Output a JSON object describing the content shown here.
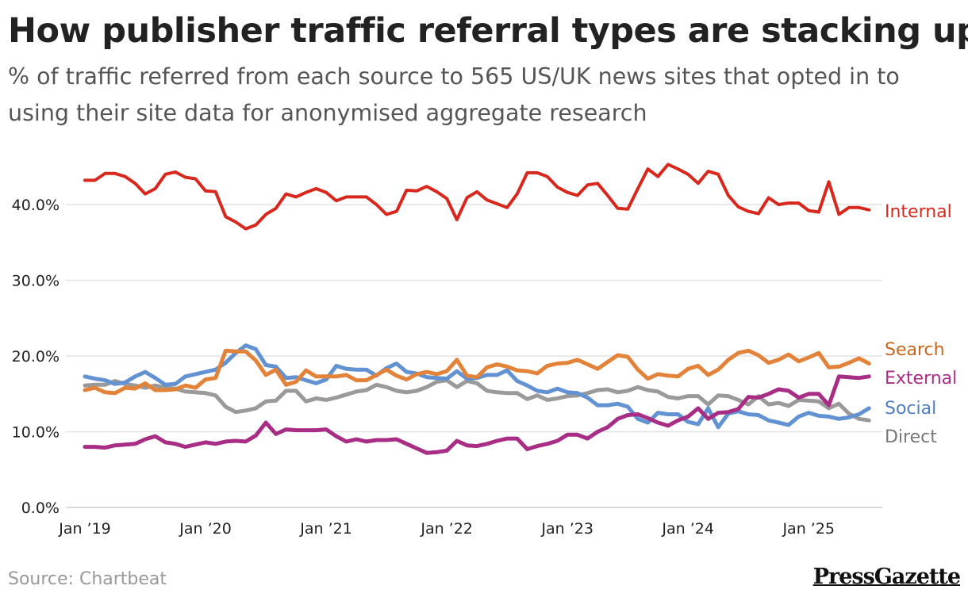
{
  "header": {
    "title": "How publisher traffic referral types are stacking up",
    "subtitle": "% of traffic referred from each source to 565 US/UK news sites that opted in to using their site data for anonymised aggregate research"
  },
  "footer": {
    "source": "Source: Chartbeat",
    "logo": "PressGazette"
  },
  "chart_data": {
    "type": "line",
    "title": "How publisher traffic referral types are stacking up",
    "subtitle": "% of traffic referred from each source to 565 US/UK news sites that opted in to using their site data for anonymised aggregate research",
    "ylim": [
      0,
      45
    ],
    "yticks": [
      0,
      10,
      20,
      30,
      40
    ],
    "ytick_labels": [
      "0.0%",
      "10.0%",
      "20.0%",
      "30.0%",
      "40.0%"
    ],
    "xtick_labels": [
      "Jan ’19",
      "Jan ’20",
      "Jan ’21",
      "Jan ’22",
      "Jan ’23",
      "Jan ’24",
      "Jan ’25"
    ],
    "xtick_values": [
      "2019-01",
      "2020-01",
      "2021-01",
      "2022-01",
      "2023-01",
      "2024-01",
      "2025-01"
    ],
    "grid": "horizontal",
    "legend": "direct labels at right",
    "x": [
      "2019-01",
      "2019-02",
      "2019-03",
      "2019-04",
      "2019-05",
      "2019-06",
      "2019-07",
      "2019-08",
      "2019-09",
      "2019-10",
      "2019-11",
      "2019-12",
      "2020-01",
      "2020-02",
      "2020-03",
      "2020-04",
      "2020-05",
      "2020-06",
      "2020-07",
      "2020-08",
      "2020-09",
      "2020-10",
      "2020-11",
      "2020-12",
      "2021-01",
      "2021-02",
      "2021-03",
      "2021-04",
      "2021-05",
      "2021-06",
      "2021-07",
      "2021-08",
      "2021-09",
      "2021-10",
      "2021-11",
      "2021-12",
      "2022-01",
      "2022-02",
      "2022-03",
      "2022-04",
      "2022-05",
      "2022-06",
      "2022-07",
      "2022-08",
      "2022-09",
      "2022-10",
      "2022-11",
      "2022-12",
      "2023-01",
      "2023-02",
      "2023-03",
      "2023-04",
      "2023-05",
      "2023-06",
      "2023-07",
      "2023-08",
      "2023-09",
      "2023-10",
      "2023-11",
      "2023-12",
      "2024-01",
      "2024-02",
      "2024-03",
      "2024-04",
      "2024-05",
      "2024-06",
      "2024-07",
      "2024-08",
      "2024-09",
      "2024-10",
      "2024-11",
      "2024-12",
      "2025-01",
      "2025-02",
      "2025-03",
      "2025-04",
      "2025-05",
      "2025-06",
      "2025-07"
    ],
    "series": [
      {
        "name": "Internal",
        "color": "#d8281d",
        "values": [
          43.2,
          43.2,
          44.1,
          44.1,
          43.7,
          42.8,
          41.4,
          42.1,
          44.0,
          44.3,
          43.6,
          43.4,
          41.8,
          41.7,
          38.4,
          37.7,
          36.8,
          37.3,
          38.7,
          39.5,
          41.4,
          41.0,
          41.6,
          42.1,
          41.6,
          40.5,
          41.0,
          41.0,
          41.0,
          40.0,
          38.7,
          39.1,
          41.9,
          41.8,
          42.4,
          41.7,
          40.8,
          38.0,
          40.9,
          41.7,
          40.6,
          40.1,
          39.6,
          41.4,
          44.2,
          44.2,
          43.7,
          42.3,
          41.6,
          41.2,
          42.6,
          42.8,
          41.2,
          39.5,
          39.4,
          42.1,
          44.7,
          43.7,
          45.3,
          44.7,
          44.0,
          42.8,
          44.4,
          44.0,
          41.2,
          39.7,
          39.1,
          38.8,
          40.9,
          40.0,
          40.2,
          40.2,
          39.2,
          39.0,
          43.0,
          38.7,
          39.6,
          39.6,
          39.3
        ]
      },
      {
        "name": "Search",
        "color": "#e3833a",
        "label_color": "#c8661a",
        "values": [
          15.5,
          15.8,
          15.2,
          15.1,
          15.8,
          15.7,
          16.4,
          15.5,
          15.5,
          15.6,
          16.1,
          15.8,
          16.9,
          17.1,
          20.7,
          20.6,
          20.6,
          19.4,
          17.5,
          18.2,
          16.2,
          16.6,
          18.1,
          17.3,
          17.3,
          17.3,
          17.5,
          16.8,
          16.8,
          17.5,
          18.2,
          17.4,
          16.9,
          17.6,
          17.9,
          17.6,
          18.0,
          19.5,
          17.4,
          17.2,
          18.5,
          18.9,
          18.6,
          18.1,
          18.0,
          17.7,
          18.7,
          19.0,
          19.1,
          19.5,
          18.9,
          18.3,
          19.2,
          20.1,
          19.9,
          18.2,
          17.0,
          17.6,
          17.4,
          17.3,
          18.3,
          18.7,
          17.5,
          18.2,
          19.5,
          20.4,
          20.7,
          20.1,
          19.1,
          19.5,
          20.2,
          19.3,
          19.8,
          20.4,
          18.5,
          18.6,
          19.1,
          19.7,
          19.0
        ]
      },
      {
        "name": "External",
        "color": "#a82d84",
        "values": [
          8.0,
          8.0,
          7.9,
          8.2,
          8.3,
          8.4,
          9.0,
          9.4,
          8.6,
          8.4,
          8.0,
          8.3,
          8.6,
          8.4,
          8.7,
          8.8,
          8.7,
          9.5,
          11.2,
          9.7,
          10.3,
          10.2,
          10.2,
          10.2,
          10.3,
          9.4,
          8.7,
          9.0,
          8.7,
          8.9,
          8.9,
          9.0,
          8.4,
          7.8,
          7.2,
          7.3,
          7.5,
          8.8,
          8.2,
          8.1,
          8.4,
          8.8,
          9.1,
          9.1,
          7.7,
          8.1,
          8.4,
          8.8,
          9.6,
          9.6,
          9.1,
          10.0,
          10.6,
          11.7,
          12.2,
          12.3,
          11.8,
          11.2,
          10.8,
          11.5,
          12.0,
          13.1,
          11.7,
          12.5,
          12.6,
          13.0,
          14.6,
          14.5,
          15.0,
          15.6,
          15.4,
          14.5,
          15.0,
          15.0,
          13.5,
          17.3,
          17.2,
          17.1,
          17.3
        ]
      },
      {
        "name": "Social",
        "color": "#6392d2",
        "label_color": "#4f7fc2",
        "values": [
          17.3,
          17.0,
          16.8,
          16.3,
          16.5,
          17.3,
          17.9,
          17.1,
          16.2,
          16.3,
          17.3,
          17.6,
          17.9,
          18.2,
          19.1,
          20.4,
          21.4,
          20.9,
          18.8,
          18.6,
          17.1,
          17.2,
          16.8,
          16.4,
          16.9,
          18.7,
          18.3,
          18.2,
          18.2,
          17.4,
          18.4,
          19.0,
          17.9,
          17.7,
          17.2,
          17.1,
          17.0,
          18.0,
          17.0,
          17.1,
          17.5,
          17.5,
          18.1,
          16.7,
          16.1,
          15.4,
          15.2,
          15.7,
          15.2,
          15.1,
          14.5,
          13.5,
          13.5,
          13.7,
          13.3,
          11.7,
          11.2,
          12.5,
          12.3,
          12.3,
          11.3,
          11.0,
          13.1,
          10.6,
          12.4,
          12.7,
          12.3,
          12.2,
          11.5,
          11.2,
          10.9,
          12.0,
          12.5,
          12.1,
          12.0,
          11.7,
          11.9,
          12.3,
          13.1
        ]
      },
      {
        "name": "Direct",
        "color": "#9a9a9a",
        "label_color": "#777777",
        "values": [
          16.1,
          16.2,
          16.2,
          16.7,
          16.3,
          16.1,
          15.8,
          16.1,
          15.8,
          15.7,
          15.3,
          15.2,
          15.1,
          14.8,
          13.3,
          12.6,
          12.8,
          13.1,
          14.0,
          14.1,
          15.4,
          15.4,
          14.0,
          14.4,
          14.2,
          14.5,
          14.9,
          15.3,
          15.5,
          16.2,
          15.9,
          15.4,
          15.2,
          15.4,
          15.9,
          16.6,
          16.8,
          15.9,
          16.7,
          16.4,
          15.4,
          15.2,
          15.1,
          15.1,
          14.3,
          14.8,
          14.2,
          14.4,
          14.7,
          14.8,
          15.1,
          15.5,
          15.6,
          15.2,
          15.4,
          15.9,
          15.5,
          15.3,
          14.6,
          14.4,
          14.7,
          14.7,
          13.6,
          14.8,
          14.7,
          14.2,
          13.6,
          14.7,
          13.6,
          13.8,
          13.4,
          14.2,
          14.1,
          14.0,
          13.1,
          13.7,
          12.4,
          11.7,
          11.5
        ]
      }
    ]
  }
}
